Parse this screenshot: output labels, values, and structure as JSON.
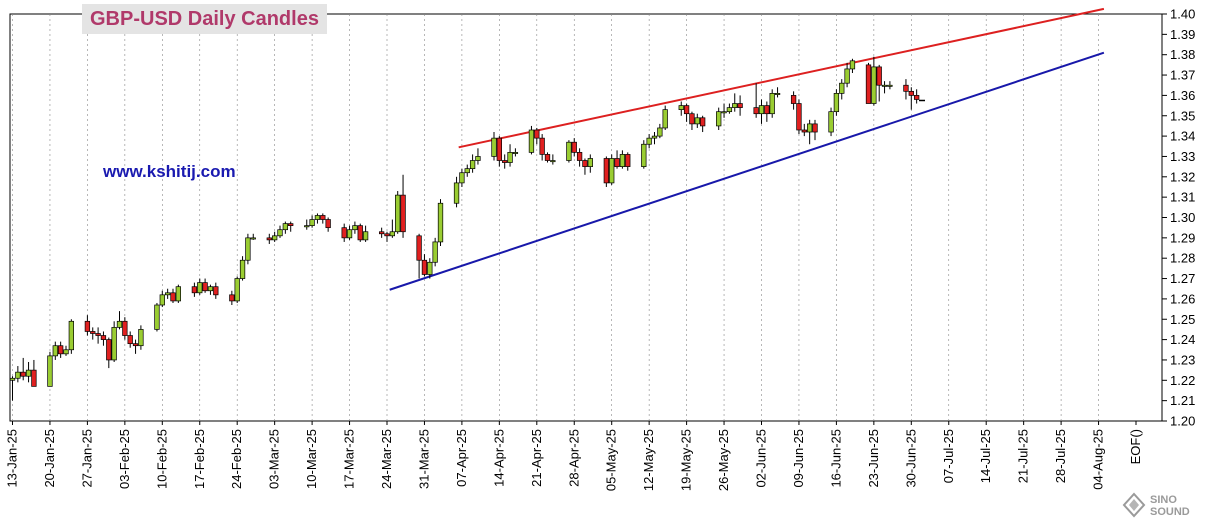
{
  "chart_data": {
    "type": "candlestick",
    "title": "GBP-USD Daily Candles",
    "website": "www.kshitij.com",
    "watermark": "SINO SOUND",
    "ylim": [
      1.2,
      1.4
    ],
    "y_ticks": [
      "1.20",
      "1.21",
      "1.22",
      "1.23",
      "1.24",
      "1.25",
      "1.26",
      "1.27",
      "1.28",
      "1.29",
      "1.30",
      "1.31",
      "1.32",
      "1.33",
      "1.34",
      "1.35",
      "1.36",
      "1.37",
      "1.38",
      "1.39",
      "1.40"
    ],
    "x_ticks": [
      "13-Jan-25",
      "20-Jan-25",
      "27-Jan-25",
      "03-Feb-25",
      "10-Feb-25",
      "17-Feb-25",
      "24-Feb-25",
      "03-Mar-25",
      "10-Mar-25",
      "17-Mar-25",
      "24-Mar-25",
      "31-Mar-25",
      "07-Apr-25",
      "14-Apr-25",
      "21-Apr-25",
      "28-Apr-25",
      "05-May-25",
      "12-May-25",
      "19-May-25",
      "26-May-25",
      "02-Jun-25",
      "09-Jun-25",
      "16-Jun-25",
      "23-Jun-25",
      "30-Jun-25",
      "07-Jul-25",
      "14-Jul-25",
      "21-Jul-25",
      "28-Jul-25",
      "04-Aug-25",
      "EOF()"
    ],
    "colors": {
      "up": "#9acd32",
      "down": "#e02020",
      "resistance": "#dd2020",
      "support": "#1818aa"
    },
    "candles": [
      [
        0,
        1.22,
        1.221,
        1.222,
        1.21
      ],
      [
        1,
        1.221,
        1.224,
        1.227,
        1.219
      ],
      [
        2,
        1.224,
        1.222,
        1.231,
        1.22
      ],
      [
        3,
        1.222,
        1.225,
        1.229,
        1.219
      ],
      [
        4,
        1.225,
        1.217,
        1.23,
        1.217
      ],
      [
        7,
        1.217,
        1.232,
        1.234,
        1.217
      ],
      [
        8,
        1.232,
        1.237,
        1.239,
        1.23
      ],
      [
        9,
        1.237,
        1.233,
        1.239,
        1.231
      ],
      [
        10,
        1.233,
        1.235,
        1.237,
        1.232
      ],
      [
        11,
        1.235,
        1.249,
        1.25,
        1.233
      ],
      [
        14,
        1.249,
        1.244,
        1.252,
        1.242
      ],
      [
        15,
        1.244,
        1.243,
        1.246,
        1.24
      ],
      [
        16,
        1.243,
        1.242,
        1.246,
        1.238
      ],
      [
        17,
        1.242,
        1.24,
        1.244,
        1.237
      ],
      [
        18,
        1.24,
        1.23,
        1.241,
        1.226
      ],
      [
        19,
        1.23,
        1.246,
        1.249,
        1.229
      ],
      [
        20,
        1.246,
        1.249,
        1.254,
        1.245
      ],
      [
        21,
        1.249,
        1.242,
        1.251,
        1.24
      ],
      [
        22,
        1.242,
        1.238,
        1.244,
        1.236
      ],
      [
        23,
        1.238,
        1.237,
        1.24,
        1.233
      ],
      [
        24,
        1.237,
        1.245,
        1.247,
        1.235
      ],
      [
        27,
        1.245,
        1.257,
        1.258,
        1.244
      ],
      [
        28,
        1.257,
        1.262,
        1.264,
        1.256
      ],
      [
        29,
        1.262,
        1.263,
        1.265,
        1.26
      ],
      [
        30,
        1.263,
        1.259,
        1.265,
        1.258
      ],
      [
        31,
        1.259,
        1.266,
        1.267,
        1.258
      ],
      [
        34,
        1.266,
        1.263,
        1.268,
        1.261
      ],
      [
        35,
        1.263,
        1.268,
        1.27,
        1.262
      ],
      [
        36,
        1.268,
        1.264,
        1.27,
        1.263
      ],
      [
        37,
        1.264,
        1.266,
        1.267,
        1.262
      ],
      [
        38,
        1.266,
        1.262,
        1.268,
        1.26
      ],
      [
        41,
        1.262,
        1.259,
        1.264,
        1.257
      ],
      [
        42,
        1.259,
        1.27,
        1.271,
        1.258
      ],
      [
        43,
        1.27,
        1.279,
        1.281,
        1.269
      ],
      [
        44,
        1.279,
        1.29,
        1.292,
        1.277
      ],
      [
        45,
        1.29,
        1.29,
        1.292,
        1.289
      ],
      [
        48,
        1.29,
        1.289,
        1.292,
        1.287
      ],
      [
        49,
        1.289,
        1.291,
        1.293,
        1.288
      ],
      [
        50,
        1.291,
        1.294,
        1.296,
        1.29
      ],
      [
        51,
        1.294,
        1.297,
        1.298,
        1.292
      ],
      [
        52,
        1.297,
        1.296,
        1.298,
        1.293
      ],
      [
        55,
        1.296,
        1.296,
        1.299,
        1.294
      ],
      [
        56,
        1.296,
        1.299,
        1.301,
        1.295
      ],
      [
        57,
        1.299,
        1.301,
        1.302,
        1.297
      ],
      [
        58,
        1.301,
        1.299,
        1.302,
        1.297
      ],
      [
        59,
        1.299,
        1.295,
        1.3,
        1.293
      ],
      [
        62,
        1.295,
        1.29,
        1.297,
        1.288
      ],
      [
        63,
        1.29,
        1.294,
        1.296,
        1.289
      ],
      [
        64,
        1.294,
        1.296,
        1.298,
        1.292
      ],
      [
        65,
        1.296,
        1.289,
        1.297,
        1.288
      ],
      [
        66,
        1.289,
        1.293,
        1.296,
        1.288
      ],
      [
        69,
        1.293,
        1.292,
        1.295,
        1.29
      ],
      [
        70,
        1.292,
        1.291,
        1.293,
        1.288
      ],
      [
        71,
        1.291,
        1.293,
        1.299,
        1.29
      ],
      [
        72,
        1.293,
        1.311,
        1.313,
        1.292
      ],
      [
        73,
        1.311,
        1.293,
        1.321,
        1.29
      ],
      [
        76,
        1.291,
        1.279,
        1.292,
        1.27
      ],
      [
        77,
        1.279,
        1.272,
        1.282,
        1.271
      ],
      [
        78,
        1.272,
        1.278,
        1.28,
        1.27
      ],
      [
        79,
        1.278,
        1.288,
        1.29,
        1.276
      ],
      [
        80,
        1.288,
        1.307,
        1.309,
        1.286
      ],
      [
        83,
        1.307,
        1.317,
        1.32,
        1.305
      ],
      [
        84,
        1.317,
        1.322,
        1.324,
        1.315
      ],
      [
        85,
        1.322,
        1.324,
        1.326,
        1.32
      ],
      [
        86,
        1.324,
        1.328,
        1.331,
        1.322
      ],
      [
        87,
        1.328,
        1.33,
        1.334,
        1.326
      ],
      [
        90,
        1.33,
        1.339,
        1.342,
        1.328
      ],
      [
        91,
        1.339,
        1.328,
        1.34,
        1.325
      ],
      [
        92,
        1.328,
        1.327,
        1.331,
        1.324
      ],
      [
        93,
        1.327,
        1.332,
        1.336,
        1.325
      ],
      [
        94,
        1.332,
        1.332,
        1.334,
        1.33
      ],
      [
        97,
        1.332,
        1.343,
        1.345,
        1.331
      ],
      [
        98,
        1.343,
        1.339,
        1.344,
        1.336
      ],
      [
        99,
        1.339,
        1.331,
        1.341,
        1.328
      ],
      [
        100,
        1.331,
        1.328,
        1.332,
        1.327
      ],
      [
        101,
        1.328,
        1.328,
        1.331,
        1.326
      ],
      [
        104,
        1.328,
        1.337,
        1.338,
        1.327
      ],
      [
        105,
        1.337,
        1.332,
        1.339,
        1.33
      ],
      [
        106,
        1.332,
        1.328,
        1.334,
        1.325
      ],
      [
        107,
        1.328,
        1.325,
        1.329,
        1.321
      ],
      [
        108,
        1.325,
        1.329,
        1.331,
        1.322
      ],
      [
        111,
        1.329,
        1.317,
        1.33,
        1.315
      ],
      [
        112,
        1.317,
        1.329,
        1.331,
        1.316
      ],
      [
        113,
        1.329,
        1.325,
        1.333,
        1.324
      ],
      [
        114,
        1.325,
        1.331,
        1.333,
        1.324
      ],
      [
        115,
        1.331,
        1.325,
        1.332,
        1.323
      ],
      [
        118,
        1.325,
        1.336,
        1.338,
        1.324
      ],
      [
        119,
        1.336,
        1.339,
        1.341,
        1.334
      ],
      [
        120,
        1.339,
        1.34,
        1.342,
        1.336
      ],
      [
        121,
        1.34,
        1.344,
        1.346,
        1.339
      ],
      [
        122,
        1.344,
        1.353,
        1.355,
        1.343
      ],
      [
        125,
        1.353,
        1.355,
        1.357,
        1.35
      ],
      [
        126,
        1.355,
        1.351,
        1.356,
        1.347
      ],
      [
        127,
        1.351,
        1.346,
        1.352,
        1.343
      ],
      [
        128,
        1.346,
        1.349,
        1.351,
        1.344
      ],
      [
        129,
        1.349,
        1.345,
        1.35,
        1.342
      ],
      [
        132,
        1.345,
        1.352,
        1.354,
        1.343
      ],
      [
        133,
        1.352,
        1.352,
        1.356,
        1.349
      ],
      [
        134,
        1.352,
        1.354,
        1.356,
        1.351
      ],
      [
        135,
        1.354,
        1.356,
        1.361,
        1.352
      ],
      [
        136,
        1.356,
        1.354,
        1.36,
        1.35
      ],
      [
        139,
        1.354,
        1.351,
        1.366,
        1.349
      ],
      [
        140,
        1.351,
        1.355,
        1.358,
        1.346
      ],
      [
        141,
        1.355,
        1.351,
        1.357,
        1.347
      ],
      [
        142,
        1.351,
        1.361,
        1.363,
        1.349
      ],
      [
        143,
        1.361,
        1.361,
        1.364,
        1.359
      ],
      [
        146,
        1.36,
        1.356,
        1.362,
        1.353
      ],
      [
        147,
        1.356,
        1.343,
        1.358,
        1.341
      ],
      [
        148,
        1.343,
        1.342,
        1.346,
        1.34
      ],
      [
        149,
        1.342,
        1.346,
        1.348,
        1.336
      ],
      [
        150,
        1.346,
        1.342,
        1.348,
        1.338
      ],
      [
        153,
        1.342,
        1.352,
        1.354,
        1.34
      ],
      [
        154,
        1.352,
        1.361,
        1.363,
        1.35
      ],
      [
        155,
        1.361,
        1.366,
        1.368,
        1.358
      ],
      [
        156,
        1.366,
        1.373,
        1.376,
        1.364
      ],
      [
        157,
        1.373,
        1.377,
        1.378,
        1.371
      ],
      [
        160,
        1.375,
        1.356,
        1.376,
        1.356
      ],
      [
        161,
        1.356,
        1.374,
        1.379,
        1.355
      ],
      [
        162,
        1.374,
        1.365,
        1.375,
        1.357
      ],
      [
        163,
        1.365,
        1.365,
        1.367,
        1.361
      ],
      [
        164,
        1.365,
        1.365,
        1.367,
        1.363
      ],
      [
        167,
        1.365,
        1.362,
        1.368,
        1.358
      ],
      [
        168,
        1.362,
        1.36,
        1.364,
        1.353
      ],
      [
        169,
        1.36,
        1.358,
        1.363,
        1.356
      ]
    ],
    "trend_lines": [
      {
        "role": "resistance",
        "x1": 83.4,
        "y1": 1.3345,
        "x2": 204,
        "y2": 1.4025
      },
      {
        "role": "support",
        "x1": 70.5,
        "y1": 1.2645,
        "x2": 204,
        "y2": 1.381
      }
    ],
    "last_price_marker": {
      "x": 170,
      "y": 1.3575
    }
  }
}
